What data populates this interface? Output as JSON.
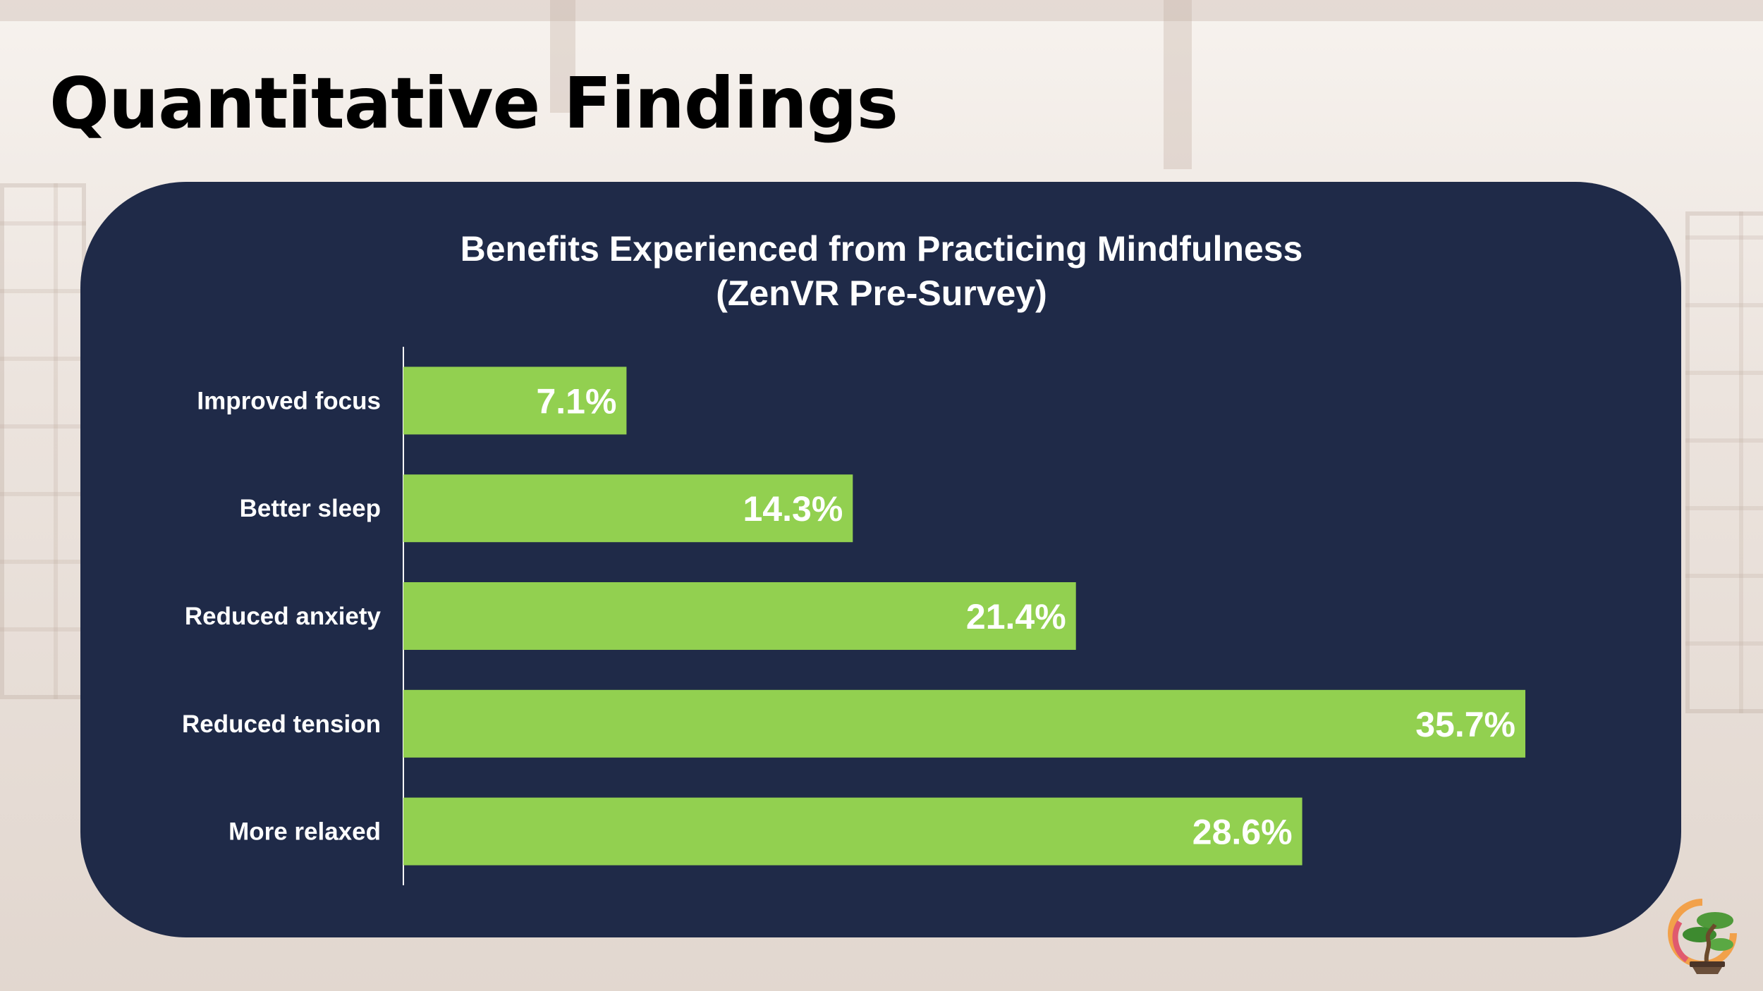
{
  "slide": {
    "title": "Quantitative Findings"
  },
  "colors": {
    "panel": "#1f2a48",
    "bar": "#92d050",
    "text_on_panel": "#ffffff"
  },
  "logo": {
    "icon": "bonsai-sunset-logo-icon"
  },
  "chart_data": {
    "type": "bar",
    "orientation": "horizontal",
    "title_lines": [
      "Benefits Experienced from Practicing Mindfulness",
      "(ZenVR Pre-Survey)"
    ],
    "categories": [
      "Improved focus",
      "Better sleep",
      "Reduced anxiety",
      "Reduced tension",
      "More relaxed"
    ],
    "values": [
      7.1,
      14.3,
      21.4,
      35.7,
      28.6
    ],
    "value_labels": [
      "7.1%",
      "14.3%",
      "21.4%",
      "35.7%",
      "28.6%"
    ],
    "xlim": [
      0,
      40
    ],
    "grid": false,
    "legend": "none"
  }
}
